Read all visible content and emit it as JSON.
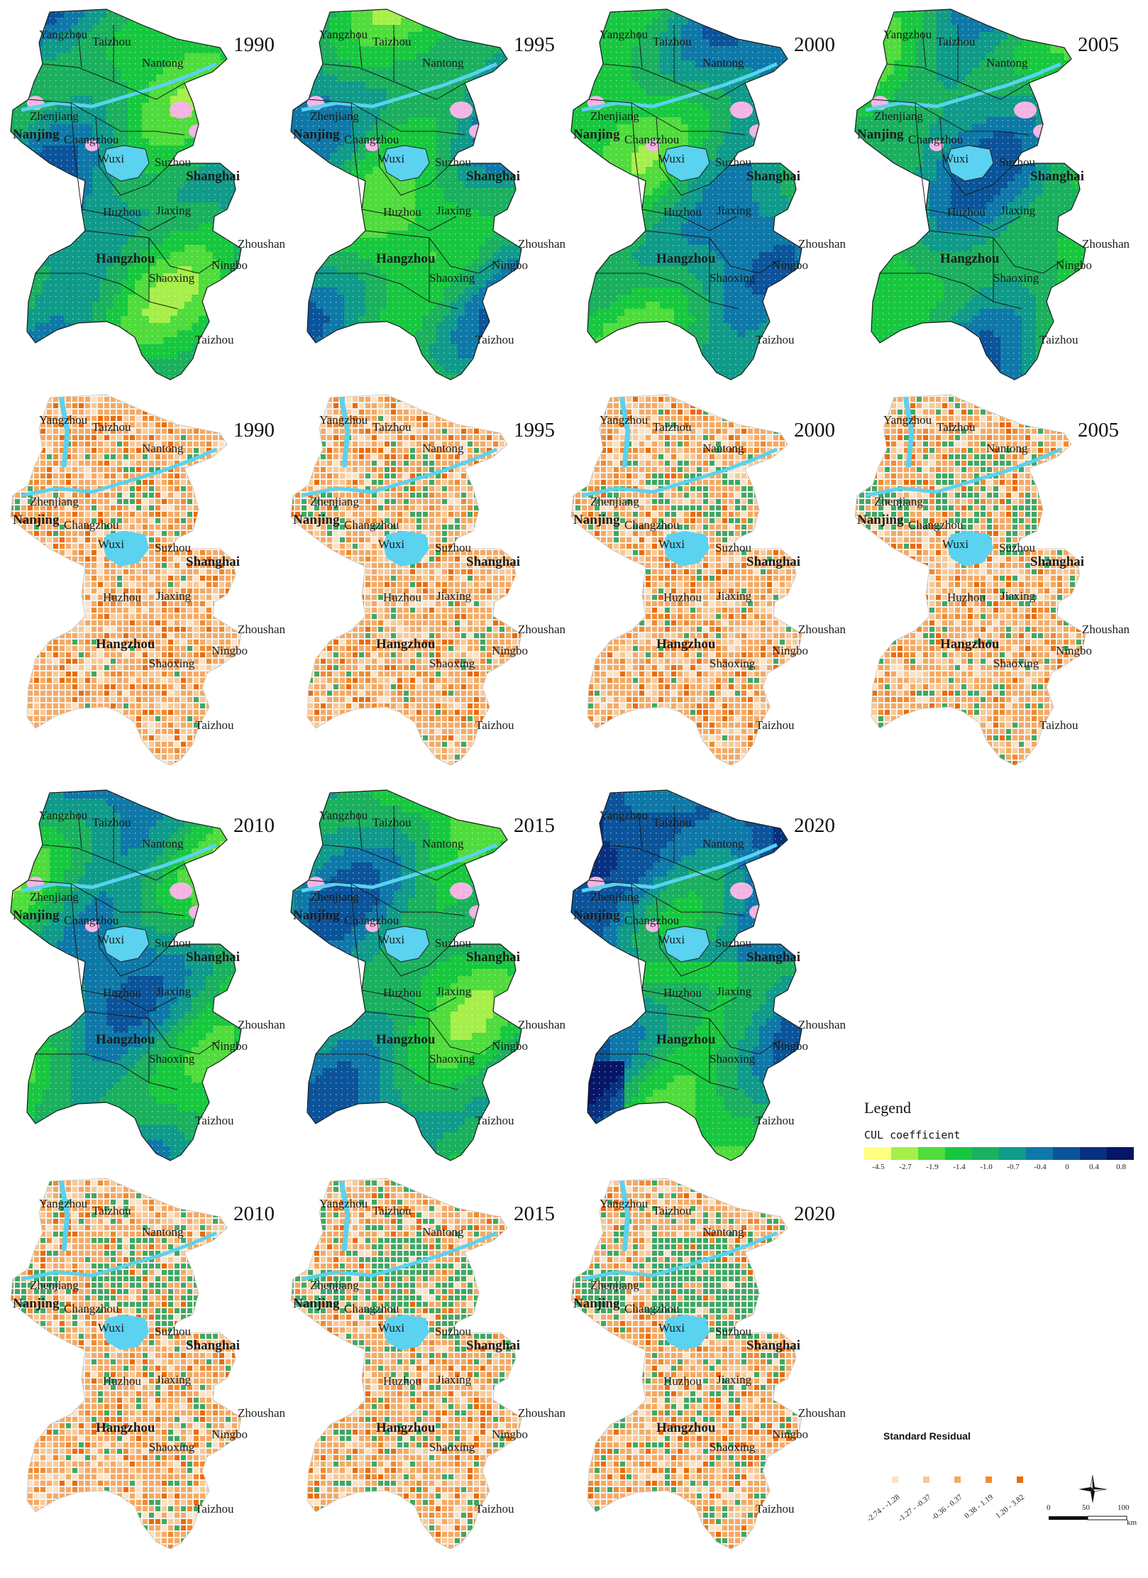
{
  "panels": [
    {
      "year": "1990",
      "kind": "cul"
    },
    {
      "year": "1995",
      "kind": "cul"
    },
    {
      "year": "2000",
      "kind": "cul"
    },
    {
      "year": "2005",
      "kind": "cul"
    },
    {
      "year": "1990",
      "kind": "sr"
    },
    {
      "year": "1995",
      "kind": "sr"
    },
    {
      "year": "2000",
      "kind": "sr"
    },
    {
      "year": "2005",
      "kind": "sr"
    },
    {
      "year": "2010",
      "kind": "cul"
    },
    {
      "year": "2015",
      "kind": "cul"
    },
    {
      "year": "2020",
      "kind": "cul"
    },
    {
      "year": "2010",
      "kind": "sr"
    },
    {
      "year": "2015",
      "kind": "sr"
    },
    {
      "year": "2020",
      "kind": "sr"
    }
  ],
  "cities": [
    {
      "name": "Yangzhou",
      "bold": false
    },
    {
      "name": "Taizhou",
      "bold": false
    },
    {
      "name": "Nantong",
      "bold": false
    },
    {
      "name": "Zhenjiang",
      "bold": false
    },
    {
      "name": "Nanjing",
      "bold": true
    },
    {
      "name": "Changzhou",
      "bold": false
    },
    {
      "name": "Wuxi",
      "bold": false
    },
    {
      "name": "Suzhou",
      "bold": false
    },
    {
      "name": "Shanghai",
      "bold": true
    },
    {
      "name": "Huzhou",
      "bold": false
    },
    {
      "name": "Jiaxing",
      "bold": false
    },
    {
      "name": "Zhoushan",
      "bold": false
    },
    {
      "name": "Hangzhou",
      "bold": true
    },
    {
      "name": "Ningbo",
      "bold": false
    },
    {
      "name": "Shaoxing",
      "bold": false
    },
    {
      "name": "Taizhou",
      "bold": false
    }
  ],
  "legend_cul": {
    "title": "Legend",
    "subtitle": "CUL coefficient",
    "ticks": [
      "-4.5",
      "-2.7",
      "-1.9",
      "-1.4",
      "-1.0",
      "-0.7",
      "-0.4",
      "0",
      "0.4",
      "0.8"
    ],
    "colors": [
      "#ffff80",
      "#a6ef4a",
      "#4fdc3c",
      "#17c83f",
      "#1ab05e",
      "#0f9a8a",
      "#0e78a8",
      "#0b539a",
      "#08307f",
      "#061566"
    ]
  },
  "legend_sr": {
    "title": "Standard Residual",
    "classes": [
      "-2.74 - -1.28",
      "-1.27 - -0.37",
      "-0.36 - 0.37",
      "0.38 - 1.19",
      "1.20 - 3.82"
    ],
    "colors": [
      "#fbe2c6",
      "#f8c998",
      "#f5a964",
      "#f08a2e",
      "#ec6a08"
    ]
  },
  "scale": {
    "labels": [
      "0",
      "50",
      "100"
    ],
    "unit": "km"
  },
  "colors": {
    "water": "#5ad2f0",
    "urban_pink": "#f4b4e4",
    "urban_green": "#3ea866",
    "boundary": "#1a1a1a"
  }
}
